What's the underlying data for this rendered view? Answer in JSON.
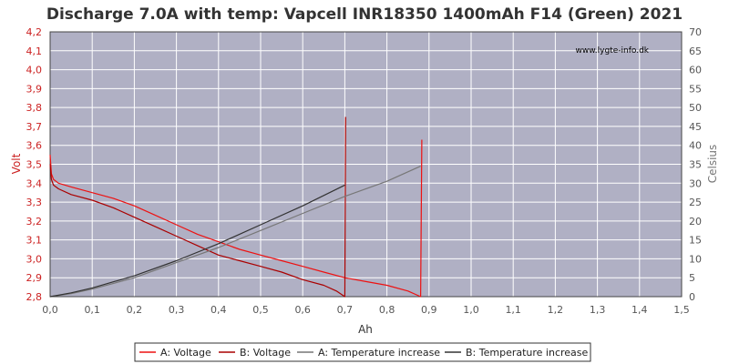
{
  "chart_data": {
    "type": "line",
    "title": "Discharge 7.0A with temp: Vapcell INR18350 1400mAh F14 (Green) 2021",
    "watermark": "www.lygte-info.dk",
    "xlabel": "Ah",
    "ylabel": "Volt",
    "y2label": "Celsius",
    "xlim": [
      0,
      1.5
    ],
    "ylim": [
      2.8,
      4.2
    ],
    "y2lim": [
      0,
      70
    ],
    "x_ticks": [
      "0,0",
      "0,1",
      "0,2",
      "0,3",
      "0,4",
      "0,5",
      "0,6",
      "0,7",
      "0,8",
      "0,9",
      "1,0",
      "1,1",
      "1,2",
      "1,3",
      "1,4",
      "1,5"
    ],
    "y_ticks": [
      "2,8",
      "2,9",
      "3,0",
      "3,1",
      "3,2",
      "3,3",
      "3,4",
      "3,5",
      "3,6",
      "3,7",
      "3,8",
      "3,9",
      "4,0",
      "4,1",
      "4,2"
    ],
    "y2_ticks": [
      "0",
      "5",
      "10",
      "15",
      "20",
      "25",
      "30",
      "35",
      "40",
      "45",
      "50",
      "55",
      "60",
      "65",
      "70"
    ],
    "grid": true,
    "legend_position": "bottom",
    "colors": {
      "plot_bg": "#b0b0c4",
      "grid": "#ffffff",
      "a_voltage": "#ee1111",
      "b_voltage": "#aa0000",
      "a_temp": "#777777",
      "b_temp": "#333333",
      "left_axis": "#cc2222",
      "right_axis": "#777777"
    },
    "series": [
      {
        "name": "A: Voltage",
        "axis": "left",
        "color": "#ee1111",
        "points": [
          [
            0,
            3.55
          ],
          [
            0.003,
            3.45
          ],
          [
            0.008,
            3.42
          ],
          [
            0.02,
            3.4
          ],
          [
            0.05,
            3.38
          ],
          [
            0.1,
            3.35
          ],
          [
            0.15,
            3.32
          ],
          [
            0.2,
            3.28
          ],
          [
            0.25,
            3.23
          ],
          [
            0.3,
            3.18
          ],
          [
            0.35,
            3.13
          ],
          [
            0.4,
            3.09
          ],
          [
            0.45,
            3.05
          ],
          [
            0.5,
            3.02
          ],
          [
            0.55,
            2.99
          ],
          [
            0.6,
            2.96
          ],
          [
            0.65,
            2.93
          ],
          [
            0.7,
            2.9
          ],
          [
            0.75,
            2.88
          ],
          [
            0.8,
            2.86
          ],
          [
            0.85,
            2.83
          ],
          [
            0.88,
            2.8
          ],
          [
            0.883,
            3.63
          ]
        ]
      },
      {
        "name": "B: Voltage",
        "axis": "left",
        "color": "#aa0000",
        "points": [
          [
            0,
            3.5
          ],
          [
            0.003,
            3.42
          ],
          [
            0.008,
            3.39
          ],
          [
            0.02,
            3.37
          ],
          [
            0.05,
            3.34
          ],
          [
            0.1,
            3.31
          ],
          [
            0.15,
            3.27
          ],
          [
            0.2,
            3.22
          ],
          [
            0.25,
            3.17
          ],
          [
            0.3,
            3.12
          ],
          [
            0.35,
            3.07
          ],
          [
            0.4,
            3.02
          ],
          [
            0.45,
            2.99
          ],
          [
            0.5,
            2.96
          ],
          [
            0.55,
            2.93
          ],
          [
            0.6,
            2.89
          ],
          [
            0.65,
            2.86
          ],
          [
            0.68,
            2.83
          ],
          [
            0.7,
            2.8
          ],
          [
            0.702,
            3.75
          ]
        ]
      },
      {
        "name": "A: Temperature increase",
        "axis": "right",
        "color": "#777777",
        "points": [
          [
            0,
            0
          ],
          [
            0.05,
            0.8
          ],
          [
            0.1,
            2
          ],
          [
            0.2,
            5
          ],
          [
            0.3,
            9
          ],
          [
            0.4,
            13
          ],
          [
            0.5,
            17.5
          ],
          [
            0.6,
            22
          ],
          [
            0.7,
            26.5
          ],
          [
            0.8,
            30.5
          ],
          [
            0.88,
            34.5
          ]
        ]
      },
      {
        "name": "B: Temperature increase",
        "axis": "right",
        "color": "#333333",
        "points": [
          [
            0,
            0
          ],
          [
            0.05,
            1
          ],
          [
            0.1,
            2.3
          ],
          [
            0.2,
            5.5
          ],
          [
            0.3,
            9.5
          ],
          [
            0.4,
            14
          ],
          [
            0.5,
            19
          ],
          [
            0.6,
            24
          ],
          [
            0.7,
            29.5
          ]
        ]
      }
    ]
  }
}
